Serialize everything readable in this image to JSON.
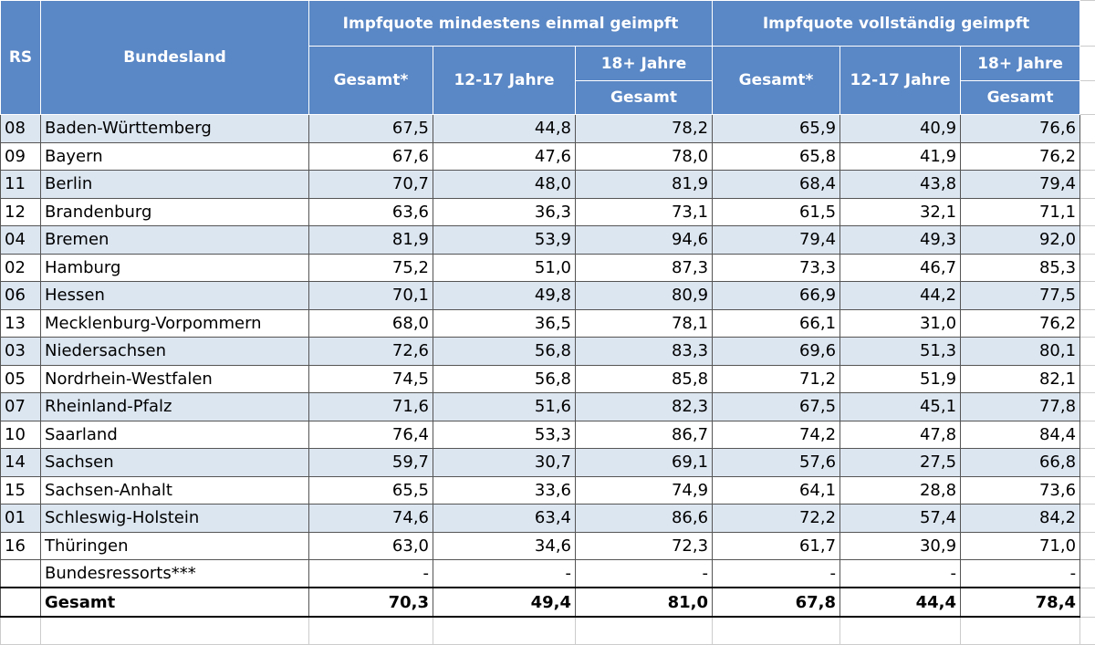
{
  "table": {
    "header": {
      "rs": "RS",
      "bundesland": "Bundesland",
      "group1": "Impfquote mindestens einmal geimpft",
      "group2": "Impfquote vollständig geimpft",
      "g1": {
        "gesamt": "Gesamt*",
        "jugend": "12-17 Jahre",
        "erw": "18+ Jahre",
        "erw_gesamt": "Gesamt"
      },
      "g2": {
        "gesamt": "Gesamt*",
        "jugend": "12-17 Jahre",
        "erw": "18+ Jahre",
        "erw_gesamt": "Gesamt"
      }
    },
    "rows": [
      [
        "08",
        "Baden-Württemberg",
        "67,5",
        "44,8",
        "78,2",
        "65,9",
        "40,9",
        "76,6"
      ],
      [
        "09",
        "Bayern",
        "67,6",
        "47,6",
        "78,0",
        "65,8",
        "41,9",
        "76,2"
      ],
      [
        "11",
        "Berlin",
        "70,7",
        "48,0",
        "81,9",
        "68,4",
        "43,8",
        "79,4"
      ],
      [
        "12",
        "Brandenburg",
        "63,6",
        "36,3",
        "73,1",
        "61,5",
        "32,1",
        "71,1"
      ],
      [
        "04",
        "Bremen",
        "81,9",
        "53,9",
        "94,6",
        "79,4",
        "49,3",
        "92,0"
      ],
      [
        "02",
        "Hamburg",
        "75,2",
        "51,0",
        "87,3",
        "73,3",
        "46,7",
        "85,3"
      ],
      [
        "06",
        "Hessen",
        "70,1",
        "49,8",
        "80,9",
        "66,9",
        "44,2",
        "77,5"
      ],
      [
        "13",
        "Mecklenburg-Vorpommern",
        "68,0",
        "36,5",
        "78,1",
        "66,1",
        "31,0",
        "76,2"
      ],
      [
        "03",
        "Niedersachsen",
        "72,6",
        "56,8",
        "83,3",
        "69,6",
        "51,3",
        "80,1"
      ],
      [
        "05",
        "Nordrhein-Westfalen",
        "74,5",
        "56,8",
        "85,8",
        "71,2",
        "51,9",
        "82,1"
      ],
      [
        "07",
        "Rheinland-Pfalz",
        "71,6",
        "51,6",
        "82,3",
        "67,5",
        "45,1",
        "77,8"
      ],
      [
        "10",
        "Saarland",
        "76,4",
        "53,3",
        "86,7",
        "74,2",
        "47,8",
        "84,4"
      ],
      [
        "14",
        "Sachsen",
        "59,7",
        "30,7",
        "69,1",
        "57,6",
        "27,5",
        "66,8"
      ],
      [
        "15",
        "Sachsen-Anhalt",
        "65,5",
        "33,6",
        "74,9",
        "64,1",
        "28,8",
        "73,6"
      ],
      [
        "01",
        "Schleswig-Holstein",
        "74,6",
        "63,4",
        "86,6",
        "72,2",
        "57,4",
        "84,2"
      ],
      [
        "16",
        "Thüringen",
        "63,0",
        "34,6",
        "72,3",
        "61,7",
        "30,9",
        "71,0"
      ]
    ],
    "ressorts": [
      "Bundesressorts***",
      "-",
      "-",
      "-",
      "-",
      "-",
      "-"
    ],
    "total": [
      "Gesamt",
      "70,3",
      "49,4",
      "81,0",
      "67,8",
      "44,4",
      "78,4"
    ]
  }
}
